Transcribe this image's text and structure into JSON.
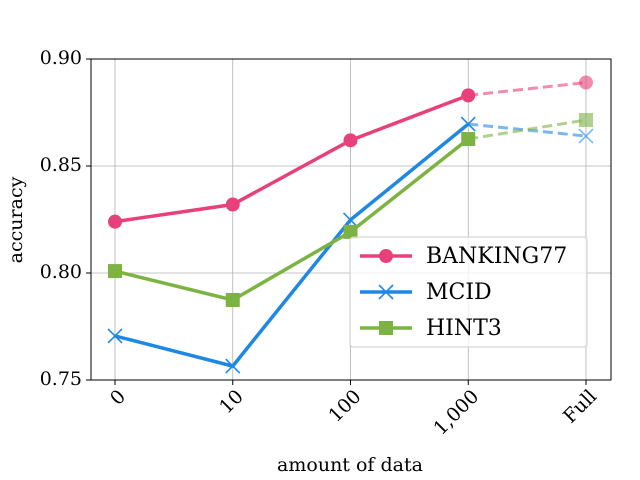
{
  "chart_data": {
    "type": "line",
    "xlabel": "amount of data",
    "ylabel": "accuracy",
    "categories": [
      "0",
      "10",
      "100",
      "1,000",
      "Full"
    ],
    "series": [
      {
        "name": "BANKING77",
        "color": "#e8407a",
        "marker": "circle",
        "values": [
          0.824,
          0.832,
          0.862,
          0.883,
          0.889
        ],
        "dashed_from_index": 3
      },
      {
        "name": "MCID",
        "color": "#1f88e5",
        "marker": "x",
        "values": [
          0.7706,
          0.7565,
          0.8248,
          0.8696,
          0.864
        ],
        "dashed_from_index": 3
      },
      {
        "name": "HINT3",
        "color": "#7cb342",
        "marker": "square",
        "values": [
          0.8009,
          0.7874,
          0.8192,
          0.8626,
          0.8715
        ],
        "dashed_from_index": 3
      }
    ],
    "ylim": [
      0.75,
      0.9
    ],
    "yticks": [
      0.75,
      {
        "value": 0.8,
        "label": "0.80"
      },
      0.85,
      {
        "value": 0.9,
        "label": "0.90"
      }
    ],
    "grid": true,
    "legend": "lower right"
  }
}
